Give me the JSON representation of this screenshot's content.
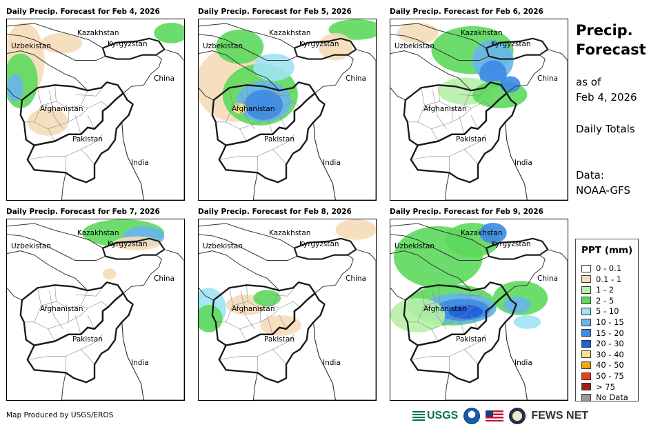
{
  "panels": [
    {
      "title": "Daily Precip. Forecast for Feb 4, 2026",
      "intensity": "low-west"
    },
    {
      "title": "Daily Precip. Forecast for Feb 5, 2026",
      "intensity": "heavy-afghanistan"
    },
    {
      "title": "Daily Precip. Forecast for Feb 6, 2026",
      "intensity": "moderate-east"
    },
    {
      "title": "Daily Precip. Forecast for Feb 7, 2026",
      "intensity": "minimal"
    },
    {
      "title": "Daily Precip. Forecast for Feb 8, 2026",
      "intensity": "light-west"
    },
    {
      "title": "Daily Precip. Forecast for Feb 9, 2026",
      "intensity": "heavy-central"
    }
  ],
  "map_labels": {
    "kazakhstan": "Kazakhstan",
    "uzbekistan": "Uzbekistan",
    "kyrgyzstan": "Kyrgyzstan",
    "china": "China",
    "afghanistan": "Afghanistan",
    "pakistan": "Pakistan",
    "india": "India"
  },
  "sidebar": {
    "title_line1": "Precip.",
    "title_line2": "Forecast",
    "asof_line1": "as of",
    "asof_line2": "Feb 4, 2026",
    "totals": "Daily Totals",
    "data_line1": "Data:",
    "data_line2": "NOAA-GFS"
  },
  "legend": {
    "title": "PPT (mm)",
    "items": [
      {
        "label": "0 - 0.1",
        "color": "#ffffff"
      },
      {
        "label": "0.1 - 1",
        "color": "#f5dcb8"
      },
      {
        "label": "1 - 2",
        "color": "#b6f0a8"
      },
      {
        "label": "2 - 5",
        "color": "#5cd95c"
      },
      {
        "label": "5 - 10",
        "color": "#9fe3f5"
      },
      {
        "label": "10 - 15",
        "color": "#69b4ee"
      },
      {
        "label": "15 - 20",
        "color": "#3d8ae6"
      },
      {
        "label": "20 - 30",
        "color": "#1e5fd8"
      },
      {
        "label": "30 - 40",
        "color": "#f7e18a"
      },
      {
        "label": "40 - 50",
        "color": "#f5a30f"
      },
      {
        "label": "50 - 75",
        "color": "#f03c14"
      },
      {
        "label": "> 75",
        "color": "#a01c1c"
      },
      {
        "label": "No Data",
        "color": "#9a9a9a"
      }
    ]
  },
  "footer": {
    "produced_by": "Map Produced by USGS/EROS",
    "usgs": "USGS",
    "fews": "FEWS NET"
  },
  "colors": {
    "border": "#1a1a1a",
    "province": "#888888"
  }
}
